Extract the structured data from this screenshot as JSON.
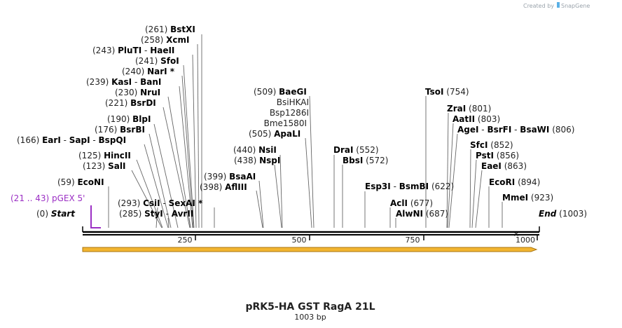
{
  "credit": "Created by",
  "credit_brand": "SnapGene",
  "title": "pRK5-HA GST RagA 21L",
  "length": "1003 bp",
  "primer": {
    "range": "(21 .. 43)",
    "name": "pGEX 5'"
  },
  "scale_labels": [
    "250",
    "500",
    "750",
    "1000"
  ],
  "sites": [
    {
      "pos": "(261)",
      "name": "BstXI"
    },
    {
      "pos": "(258)",
      "name": "XcmI"
    },
    {
      "pos": "(243)",
      "name": "PluTI",
      "extra": "HaeII"
    },
    {
      "pos": "(241)",
      "name": "SfoI"
    },
    {
      "pos": "(240)",
      "name": "NarI *"
    },
    {
      "pos": "(239)",
      "name": "KasI",
      "extra": "BanI"
    },
    {
      "pos": "(230)",
      "name": "NruI"
    },
    {
      "pos": "(221)",
      "name": "BsrDI"
    },
    {
      "pos": "(190)",
      "name": "BlpI"
    },
    {
      "pos": "(176)",
      "name": "BsrBI"
    },
    {
      "pos": "(166)",
      "name": "EarI",
      "extra": "SapI",
      "extra2": "BspQI"
    },
    {
      "pos": "(125)",
      "name": "HincII"
    },
    {
      "pos": "(123)",
      "name": "SalI"
    },
    {
      "pos": "(59)",
      "name": "EcoNI"
    },
    {
      "pos": "(293)",
      "name": "CsiI",
      "extra": "SexAI *"
    },
    {
      "pos": "(285)",
      "name": "StyI",
      "extra": "AvrII"
    },
    {
      "pos": "(0)",
      "name": "Start"
    },
    {
      "pos": "(399)",
      "name": "BsaAI"
    },
    {
      "pos": "(398)",
      "name": "AflIII"
    },
    {
      "pos": "(440)",
      "name": "NsiI"
    },
    {
      "pos": "(438)",
      "name": "NspI"
    },
    {
      "pos": "(509)",
      "name": "BaeGI"
    },
    {
      "pos": "",
      "name": "BsiHKAI"
    },
    {
      "pos": "",
      "name": "Bsp1286I"
    },
    {
      "pos": "",
      "name": "Bme1580I"
    },
    {
      "pos": "(505)",
      "name": "ApaLI"
    },
    {
      "pos": "(552)",
      "name": "DraI"
    },
    {
      "pos": "(572)",
      "name": "BbsI"
    },
    {
      "pos": "(622)",
      "name": "Esp3I",
      "extra": "BsmBI"
    },
    {
      "pos": "(677)",
      "name": "AclI"
    },
    {
      "pos": "(687)",
      "name": "AlwNI"
    },
    {
      "pos": "(754)",
      "name": "TsoI"
    },
    {
      "pos": "(801)",
      "name": "ZraI"
    },
    {
      "pos": "(803)",
      "name": "AatII"
    },
    {
      "pos": "(806)",
      "name": "AgeI",
      "extra": "BsrFI",
      "extra2": "BsaWI"
    },
    {
      "pos": "(852)",
      "name": "SfcI"
    },
    {
      "pos": "(856)",
      "name": "PstI"
    },
    {
      "pos": "(863)",
      "name": "EaeI"
    },
    {
      "pos": "(894)",
      "name": "EcoRI"
    },
    {
      "pos": "(923)",
      "name": "MmeI"
    },
    {
      "pos": "(1003)",
      "name": "End"
    }
  ],
  "colors": {
    "primer": "#9b2fc4",
    "arrow_fill": "#f2b530",
    "arrow_stroke": "#a87410"
  }
}
